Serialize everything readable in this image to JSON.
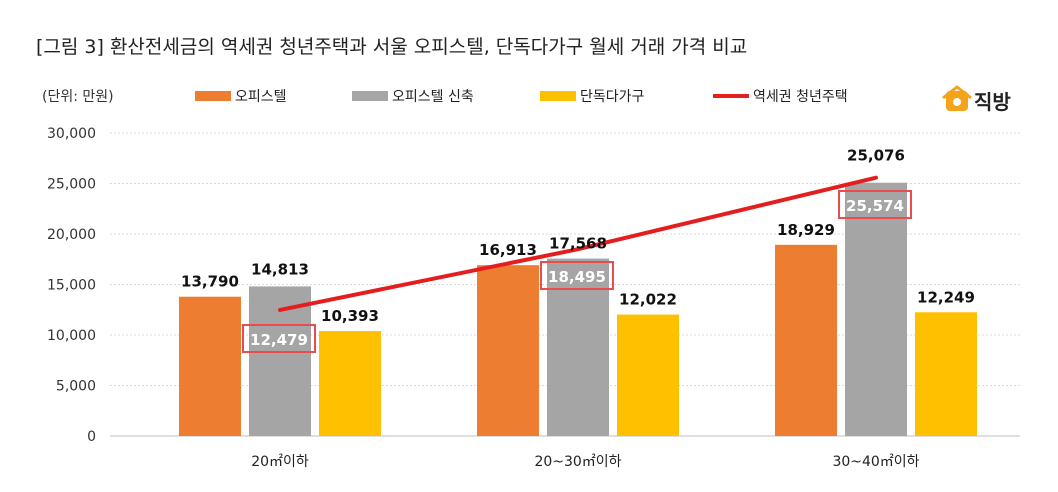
{
  "title": "[그림 3] 환산전세금의 역세권 청년주택과 서울 오피스텔, 단독다가구 월세 거래 가격 비교",
  "unit_label": "(단위: 만원)",
  "logo_text": "직방",
  "chart_data": {
    "type": "bar",
    "title": "[그림 3] 환산전세금의 역세권 청년주택과 서울 오피스텔, 단독다가구 월세 거래 가격 비교",
    "xlabel": "",
    "ylabel": "(단위: 만원)",
    "ylim": [
      0,
      30000
    ],
    "yticks": [
      0,
      5000,
      10000,
      15000,
      20000,
      25000,
      30000
    ],
    "ytick_labels": [
      "0",
      "5,000",
      "10,000",
      "15,000",
      "20,000",
      "25,000",
      "30,000"
    ],
    "categories": [
      "20㎡이하",
      "20~30㎡이하",
      "30~40㎡이하"
    ],
    "series": [
      {
        "name": "오피스텔",
        "kind": "bar",
        "color": "#ED7D31",
        "values": [
          13790,
          16913,
          18929
        ],
        "labels": [
          "13,790",
          "16,913",
          "18,929"
        ]
      },
      {
        "name": "오피스텔 신축",
        "kind": "bar",
        "color": "#A5A5A5",
        "values": [
          14813,
          17568,
          25076
        ],
        "labels": [
          "14,813",
          "17,568",
          "25,076"
        ]
      },
      {
        "name": "단독다가구",
        "kind": "bar",
        "color": "#FFC000",
        "values": [
          10393,
          12022,
          12249
        ],
        "labels": [
          "10,393",
          "12,022",
          "12,249"
        ]
      },
      {
        "name": "역세권 청년주택",
        "kind": "line",
        "color": "#E41E1E",
        "values": [
          12479,
          18495,
          25574
        ],
        "labels": [
          "12,479",
          "18,495",
          "25,574"
        ]
      }
    ],
    "legend": "top",
    "grid": true
  }
}
